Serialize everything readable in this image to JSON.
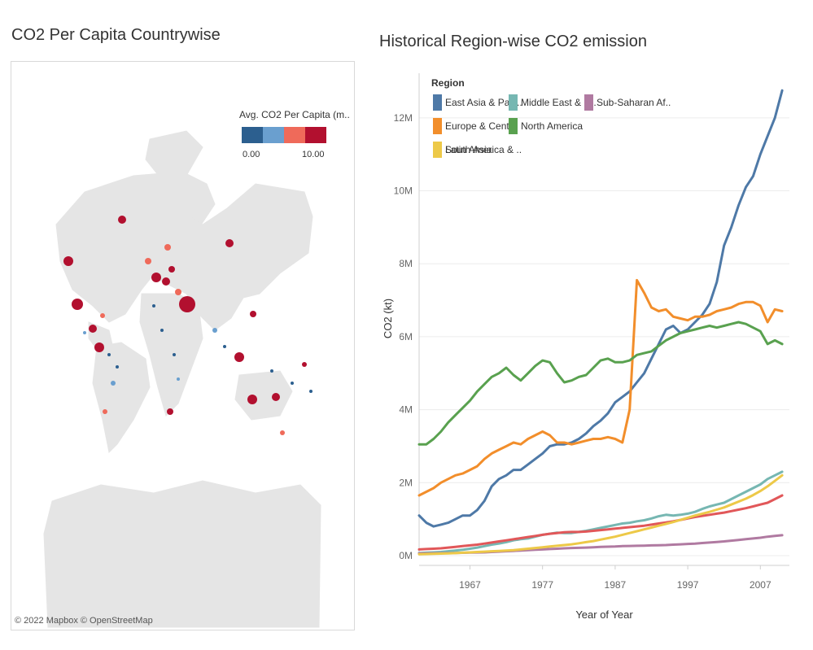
{
  "map": {
    "title": "CO2 Per Capita Countrywise",
    "legend_title": "Avg. CO2 Per Capita (m..",
    "legend_min": "0.00",
    "legend_max": "10.00",
    "ramp_colors": [
      "#2c5f8f",
      "#6a9fcf",
      "#ef6a5a",
      "#b2102f"
    ],
    "land_color": "#e5e5e5",
    "credit": "© 2022 Mapbox © OpenStreetMap"
  },
  "chart_data": {
    "type": "line",
    "title": "Historical Region-wise CO2 emission",
    "xlabel": "Year of Year",
    "ylabel": "CO2 (kt)",
    "xlim": [
      1960,
      2011
    ],
    "ylim": [
      0,
      13000000
    ],
    "x_ticks": [
      1967,
      1977,
      1987,
      1997,
      2007
    ],
    "x_tick_labels": [
      "1967",
      "1977",
      "1987",
      "1997",
      "2007"
    ],
    "y_ticks": [
      0,
      2000000,
      4000000,
      6000000,
      8000000,
      10000000,
      12000000
    ],
    "y_tick_labels": [
      "0M",
      "2M",
      "4M",
      "6M",
      "8M",
      "10M",
      "12M"
    ],
    "legend_title": "Region",
    "legend_position": "top-left",
    "x": [
      1960,
      1961,
      1962,
      1963,
      1964,
      1965,
      1966,
      1967,
      1968,
      1969,
      1970,
      1971,
      1972,
      1973,
      1974,
      1975,
      1976,
      1977,
      1978,
      1979,
      1980,
      1981,
      1982,
      1983,
      1984,
      1985,
      1986,
      1987,
      1988,
      1989,
      1990,
      1991,
      1992,
      1993,
      1994,
      1995,
      1996,
      1997,
      1998,
      1999,
      2000,
      2001,
      2002,
      2003,
      2004,
      2005,
      2006,
      2007,
      2008,
      2009,
      2010
    ],
    "series": [
      {
        "name": "East Asia & Paci..",
        "color": "#4e79a7",
        "values": [
          1100000,
          900000,
          800000,
          850000,
          900000,
          1000000,
          1100000,
          1100000,
          1250000,
          1500000,
          1900000,
          2100000,
          2200000,
          2350000,
          2350000,
          2500000,
          2650000,
          2800000,
          3000000,
          3050000,
          3050000,
          3100000,
          3200000,
          3350000,
          3550000,
          3700000,
          3900000,
          4200000,
          4350000,
          4500000,
          4750000,
          5000000,
          5400000,
          5800000,
          6200000,
          6300000,
          6100000,
          6200000,
          6400000,
          6600000,
          6900000,
          7500000,
          8500000,
          9000000,
          9600000,
          10100000,
          10400000,
          11000000,
          11500000,
          12000000,
          12750000
        ]
      },
      {
        "name": "Middle East & N..",
        "color": "#76b7b2",
        "values": [
          70000,
          80000,
          90000,
          100000,
          120000,
          140000,
          160000,
          190000,
          220000,
          260000,
          300000,
          330000,
          370000,
          420000,
          450000,
          470000,
          520000,
          570000,
          600000,
          630000,
          620000,
          620000,
          650000,
          680000,
          720000,
          760000,
          800000,
          840000,
          880000,
          900000,
          940000,
          970000,
          1020000,
          1080000,
          1120000,
          1100000,
          1120000,
          1150000,
          1200000,
          1280000,
          1350000,
          1400000,
          1450000,
          1550000,
          1650000,
          1750000,
          1850000,
          1950000,
          2100000,
          2200000,
          2300000
        ]
      },
      {
        "name": "Sub-Saharan Af..",
        "color": "#b07aa1",
        "values": [
          60000,
          62000,
          64000,
          67000,
          70000,
          74000,
          78000,
          82000,
          86000,
          90000,
          100000,
          110000,
          120000,
          130000,
          140000,
          150000,
          160000,
          170000,
          180000,
          190000,
          200000,
          210000,
          215000,
          220000,
          230000,
          240000,
          245000,
          250000,
          260000,
          265000,
          270000,
          275000,
          280000,
          285000,
          290000,
          300000,
          310000,
          320000,
          330000,
          345000,
          360000,
          375000,
          390000,
          410000,
          430000,
          450000,
          470000,
          490000,
          520000,
          540000,
          560000
        ]
      },
      {
        "name": "Europe & Centr..",
        "color": "#f28e2b",
        "values": [
          1650000,
          1750000,
          1850000,
          2000000,
          2100000,
          2200000,
          2250000,
          2350000,
          2450000,
          2650000,
          2800000,
          2900000,
          3000000,
          3100000,
          3050000,
          3200000,
          3300000,
          3400000,
          3300000,
          3100000,
          3100000,
          3050000,
          3100000,
          3150000,
          3200000,
          3200000,
          3250000,
          3200000,
          3100000,
          4000000,
          7550000,
          7200000,
          6800000,
          6700000,
          6750000,
          6550000,
          6500000,
          6450000,
          6550000,
          6550000,
          6600000,
          6700000,
          6750000,
          6800000,
          6900000,
          6950000,
          6950000,
          6850000,
          6400000,
          6750000,
          6700000
        ]
      },
      {
        "name": "North America",
        "color": "#59a14f",
        "values": [
          3050000,
          3050000,
          3200000,
          3400000,
          3650000,
          3850000,
          4050000,
          4250000,
          4500000,
          4700000,
          4900000,
          5000000,
          5150000,
          4950000,
          4800000,
          5000000,
          5200000,
          5350000,
          5300000,
          5000000,
          4750000,
          4800000,
          4900000,
          4950000,
          5150000,
          5350000,
          5400000,
          5300000,
          5300000,
          5350000,
          5500000,
          5550000,
          5600000,
          5750000,
          5900000,
          6000000,
          6100000,
          6150000,
          6200000,
          6250000,
          6300000,
          6250000,
          6300000,
          6350000,
          6400000,
          6350000,
          6250000,
          6150000,
          5800000,
          5900000,
          5800000
        ]
      },
      {
        "name": "Latin America & ..",
        "color": "#e15759",
        "values": [
          170000,
          180000,
          190000,
          200000,
          220000,
          240000,
          260000,
          280000,
          300000,
          330000,
          360000,
          390000,
          420000,
          450000,
          480000,
          510000,
          540000,
          570000,
          600000,
          620000,
          640000,
          650000,
          650000,
          660000,
          680000,
          700000,
          720000,
          740000,
          760000,
          780000,
          800000,
          820000,
          850000,
          880000,
          910000,
          940000,
          980000,
          1020000,
          1060000,
          1090000,
          1120000,
          1150000,
          1180000,
          1220000,
          1260000,
          1300000,
          1350000,
          1400000,
          1450000,
          1550000,
          1650000
        ]
      },
      {
        "name": "South Asia",
        "color": "#edc948",
        "values": [
          40000,
          45000,
          50000,
          55000,
          60000,
          70000,
          80000,
          90000,
          100000,
          110000,
          120000,
          130000,
          140000,
          150000,
          170000,
          190000,
          210000,
          230000,
          250000,
          270000,
          290000,
          310000,
          340000,
          370000,
          400000,
          440000,
          480000,
          520000,
          570000,
          620000,
          670000,
          720000,
          770000,
          820000,
          870000,
          920000,
          980000,
          1040000,
          1100000,
          1150000,
          1200000,
          1260000,
          1320000,
          1400000,
          1480000,
          1560000,
          1660000,
          1770000,
          1900000,
          2050000,
          2200000
        ]
      }
    ]
  }
}
